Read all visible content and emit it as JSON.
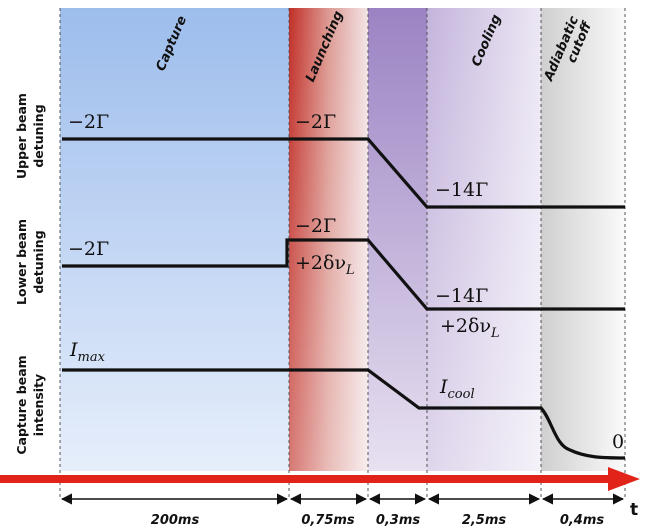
{
  "phases": [
    {
      "label": "Capture",
      "duration": "200ms"
    },
    {
      "label": "Launching",
      "duration": "0,75ms"
    },
    {
      "label": "",
      "duration": "0,3ms"
    },
    {
      "label": "Cooling",
      "duration": "2,5ms"
    },
    {
      "label": "Adiabatic cutoff",
      "label_line1": "Adiabatic",
      "label_line2": "cutoff",
      "duration": "0,4ms"
    }
  ],
  "rows": {
    "upper": {
      "line1": "Upper beam",
      "line2": "detuning"
    },
    "lower": {
      "line1": "Lower beam",
      "line2": "detuning"
    },
    "capture": {
      "line1": "Capture beam",
      "line2": "intensity"
    }
  },
  "values": {
    "upper_start": "−2Γ",
    "upper_launch": "−2Γ",
    "upper_end": "−14Γ",
    "lower_start": "−2Γ",
    "lower_launch_1": "−2Γ",
    "lower_launch_2": "+2δν",
    "lower_launch_2_sub": "L",
    "lower_end_1": "−14Γ",
    "lower_end_2": "+2δν",
    "lower_end_2_sub": "L",
    "imax_base": "I",
    "imax_sub": "max",
    "icool_base": "I",
    "icool_sub": "cool",
    "zero": "0"
  },
  "axis": {
    "label": "t"
  },
  "colors": {
    "capture": "#a9c6ee",
    "launching": "#c9453c",
    "transition": "#a48cc6",
    "cooling": "#c9b9dd",
    "adiabatic": "#dcdcdc",
    "axis": "#e2231a",
    "trace": "#111111"
  }
}
